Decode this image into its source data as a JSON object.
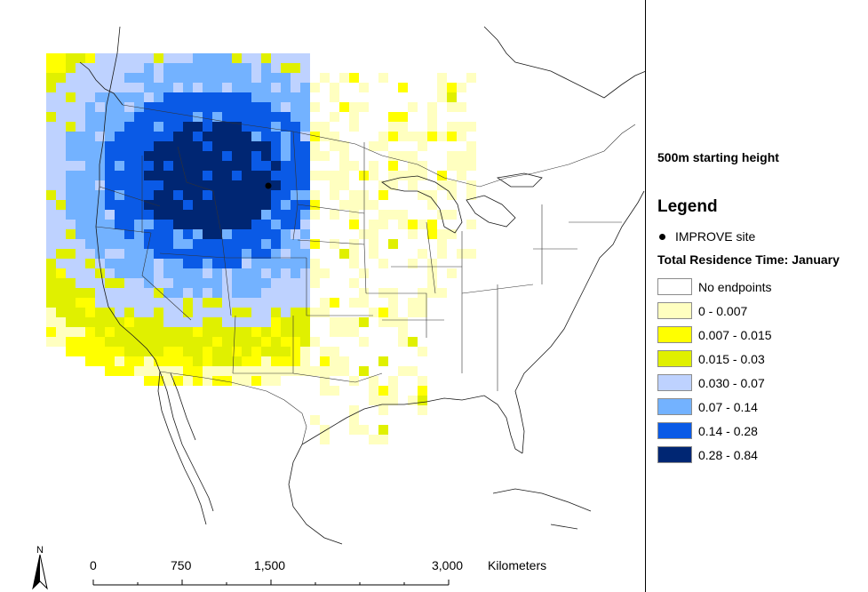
{
  "map": {
    "height_label": "500m starting height",
    "legend_title": "Legend",
    "site_label": "IMPROVE site",
    "residence_title": "Total Residence Time: January",
    "classes": [
      {
        "label": "No endpoints",
        "color": "#ffffff"
      },
      {
        "label": "0 - 0.007",
        "color": "#ffffc0"
      },
      {
        "label": "0.007 - 0.015",
        "color": "#ffff00"
      },
      {
        "label": "0.015 - 0.03",
        "color": "#e0f000"
      },
      {
        "label": "0.030 - 0.07",
        "color": "#bed2ff"
      },
      {
        "label": "0.07 - 0.14",
        "color": "#73b2ff"
      },
      {
        "label": "0.14 - 0.28",
        "color": "#0a5ae6"
      },
      {
        "label": "0.28 - 0.84",
        "color": "#002673"
      }
    ],
    "scale": {
      "labels": [
        "0",
        "750",
        "1,500",
        "3,000"
      ],
      "units": "Kilometers"
    },
    "north_label": "N",
    "north_icon": "north-arrow-icon",
    "site_icon": "site-dot-icon"
  }
}
